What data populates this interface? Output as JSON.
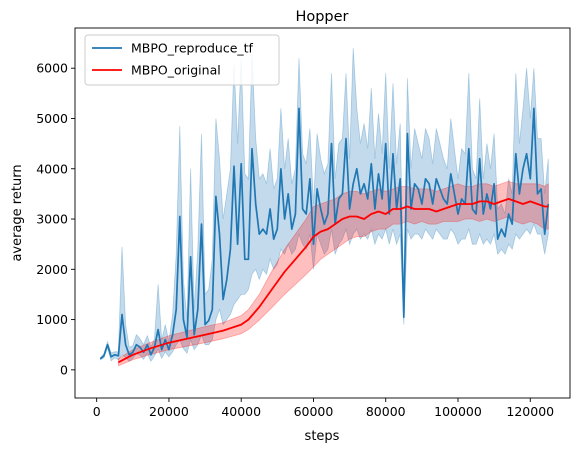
{
  "chart_data": {
    "type": "line",
    "title": "Hopper",
    "xlabel": "steps",
    "ylabel": "average return",
    "xlim": [
      -6000,
      131000
    ],
    "ylim": [
      -560,
      6800
    ],
    "xticks": [
      0,
      20000,
      40000,
      60000,
      80000,
      100000,
      120000
    ],
    "yticks": [
      0,
      1000,
      2000,
      3000,
      4000,
      5000,
      6000
    ],
    "grid": false,
    "legend_position": "top-left",
    "series": [
      {
        "name": "MBPO_reproduce_tf",
        "color": "#1f77b4",
        "band_color": "#1f77b4",
        "x": [
          1000,
          2000,
          3000,
          4000,
          5000,
          6000,
          7000,
          8000,
          9000,
          10000,
          11000,
          12000,
          13000,
          14000,
          15000,
          16000,
          17000,
          18000,
          19000,
          20000,
          21000,
          22000,
          23000,
          24000,
          25000,
          26000,
          27000,
          28000,
          29000,
          30000,
          31000,
          32000,
          33000,
          34000,
          35000,
          36000,
          37000,
          38000,
          39000,
          40000,
          41000,
          42000,
          43000,
          44000,
          45000,
          46000,
          47000,
          48000,
          49000,
          50000,
          51000,
          52000,
          53000,
          54000,
          55000,
          56000,
          57000,
          58000,
          59000,
          60000,
          61000,
          62000,
          63000,
          64000,
          65000,
          66000,
          67000,
          68000,
          69000,
          70000,
          71000,
          72000,
          73000,
          74000,
          75000,
          76000,
          77000,
          78000,
          79000,
          80000,
          81000,
          82000,
          83000,
          84000,
          85000,
          86000,
          87000,
          88000,
          89000,
          90000,
          91000,
          92000,
          93000,
          94000,
          95000,
          96000,
          97000,
          98000,
          99000,
          100000,
          101000,
          102000,
          103000,
          104000,
          105000,
          106000,
          107000,
          108000,
          109000,
          110000,
          111000,
          112000,
          113000,
          114000,
          115000,
          116000,
          117000,
          118000,
          119000,
          120000,
          121000,
          122000,
          123000,
          124000,
          125000
        ],
        "y": [
          220,
          280,
          500,
          260,
          300,
          280,
          1100,
          500,
          300,
          350,
          500,
          450,
          350,
          500,
          300,
          450,
          800,
          400,
          600,
          400,
          700,
          1200,
          3050,
          1000,
          650,
          2250,
          700,
          1200,
          2900,
          900,
          980,
          1200,
          3450,
          2700,
          1400,
          1800,
          2400,
          4050,
          2500,
          4100,
          2200,
          2200,
          4400,
          3300,
          2700,
          2800,
          2700,
          3200,
          2600,
          2800,
          4000,
          3000,
          3500,
          2800,
          3100,
          5200,
          3200,
          3100,
          3800,
          2500,
          3600,
          3200,
          2900,
          3100,
          4500,
          2900,
          3400,
          3500,
          4600,
          3200,
          3700,
          4000,
          3500,
          3700,
          3400,
          4100,
          3200,
          3900,
          3400,
          4500,
          3100,
          4300,
          3200,
          3800,
          1050,
          4700,
          3200,
          3700,
          3600,
          3300,
          3800,
          3700,
          3300,
          3800,
          3600,
          3400,
          3300,
          3900,
          3500,
          3100,
          3400,
          3300,
          4400,
          3200,
          3100,
          4200,
          3100,
          3500,
          3200,
          3700,
          2600,
          2800,
          2650,
          3100,
          2900,
          4300,
          3500,
          4000,
          4300,
          3800,
          5200,
          3500,
          3600,
          2700,
          3300
        ],
        "lower": [
          200,
          240,
          440,
          180,
          240,
          200,
          300,
          250,
          170,
          230,
          320,
          290,
          210,
          330,
          170,
          280,
          410,
          230,
          360,
          260,
          360,
          500,
          600,
          420,
          330,
          600,
          400,
          500,
          700,
          500,
          500,
          600,
          1000,
          1200,
          900,
          1000,
          1100,
          1300,
          1400,
          1500,
          1500,
          1600,
          1900,
          2000,
          1800,
          2000,
          1900,
          2200,
          2000,
          2100,
          2400,
          2300,
          2500,
          2300,
          2400,
          2700,
          2500,
          2400,
          2700,
          2000,
          2700,
          2500,
          2300,
          2400,
          2800,
          2300,
          2500,
          2600,
          2800,
          2500,
          2700,
          2800,
          2600,
          2700,
          2600,
          2800,
          2500,
          2700,
          2600,
          2800,
          2500,
          2800,
          2500,
          2700,
          900,
          2800,
          2600,
          2700,
          2700,
          2600,
          2800,
          2700,
          2600,
          2800,
          2700,
          2600,
          2600,
          2800,
          2700,
          2500,
          2600,
          2600,
          2800,
          2500,
          2500,
          2700,
          2500,
          2600,
          2500,
          2700,
          2300,
          2400,
          2300,
          2500,
          2400,
          2700,
          2600,
          2700,
          2800,
          2700,
          2900,
          2700,
          2700,
          2300,
          2700
        ],
        "upper": [
          240,
          320,
          560,
          340,
          360,
          360,
          2450,
          900,
          450,
          480,
          700,
          620,
          500,
          680,
          450,
          620,
          1700,
          600,
          900,
          560,
          1100,
          2300,
          4850,
          1800,
          1000,
          4000,
          1200,
          2400,
          4700,
          1500,
          1600,
          2200,
          5000,
          4200,
          3000,
          3500,
          4000,
          6100,
          4500,
          6200,
          3900,
          3800,
          6300,
          4600,
          3800,
          3900,
          3700,
          4400,
          3600,
          3800,
          5200,
          4000,
          4600,
          3700,
          4000,
          6200,
          4300,
          4100,
          4800,
          3300,
          4700,
          4200,
          3900,
          4100,
          5900,
          3800,
          4500,
          4600,
          5900,
          4200,
          6400,
          5200,
          4500,
          4900,
          4400,
          5600,
          4200,
          5100,
          4300,
          5900,
          4000,
          5700,
          4100,
          4900,
          1400,
          5800,
          4000,
          4800,
          4500,
          4200,
          4800,
          4600,
          4100,
          4800,
          4500,
          4200,
          4000,
          5000,
          4400,
          3800,
          4400,
          4300,
          5900,
          4000,
          3800,
          5400,
          3800,
          4500,
          4000,
          4700,
          3200,
          3300,
          3100,
          3800,
          3500,
          5900,
          4500,
          5200,
          6000,
          5000,
          6000,
          4600,
          4600,
          3500,
          4200
        ]
      },
      {
        "name": "MBPO_original",
        "color": "#ff0000",
        "band_color": "#ff0000",
        "x": [
          6000,
          10000,
          15000,
          20000,
          25000,
          30000,
          35000,
          40000,
          42000,
          45000,
          48000,
          50000,
          52000,
          55000,
          58000,
          60000,
          62000,
          64000,
          66000,
          68000,
          70000,
          72000,
          74000,
          76000,
          78000,
          80000,
          82000,
          84000,
          86000,
          88000,
          90000,
          92000,
          94000,
          96000,
          98000,
          100000,
          102000,
          104000,
          106000,
          108000,
          110000,
          112000,
          114000,
          116000,
          118000,
          120000,
          122000,
          124000,
          125000
        ],
        "y": [
          150,
          300,
          430,
          540,
          620,
          700,
          780,
          900,
          1000,
          1250,
          1550,
          1750,
          1950,
          2200,
          2450,
          2650,
          2750,
          2800,
          2900,
          3000,
          3050,
          3050,
          3000,
          3100,
          3150,
          3100,
          3200,
          3200,
          3250,
          3200,
          3200,
          3200,
          3150,
          3200,
          3250,
          3300,
          3300,
          3300,
          3350,
          3350,
          3300,
          3350,
          3400,
          3350,
          3300,
          3350,
          3300,
          3250,
          3250
        ],
        "lower": [
          80,
          200,
          310,
          400,
          470,
          540,
          620,
          720,
          800,
          990,
          1200,
          1350,
          1500,
          1700,
          1900,
          2050,
          2200,
          2300,
          2400,
          2500,
          2600,
          2650,
          2650,
          2750,
          2800,
          2800,
          2900,
          2900,
          2950,
          2900,
          2950,
          2900,
          2900,
          2950,
          2950,
          2950,
          3000,
          3000,
          2950,
          3000,
          2950,
          3000,
          3050,
          2950,
          2900,
          2950,
          2900,
          2800,
          2800
        ],
        "upper": [
          220,
          400,
          550,
          680,
          770,
          860,
          940,
          1080,
          1200,
          1500,
          1900,
          2150,
          2400,
          2700,
          3000,
          3250,
          3300,
          3350,
          3400,
          3500,
          3550,
          3550,
          3500,
          3550,
          3600,
          3550,
          3600,
          3650,
          3650,
          3600,
          3600,
          3600,
          3550,
          3600,
          3650,
          3700,
          3650,
          3650,
          3700,
          3700,
          3650,
          3700,
          3750,
          3700,
          3700,
          3700,
          3700,
          3650,
          3700
        ]
      }
    ]
  }
}
